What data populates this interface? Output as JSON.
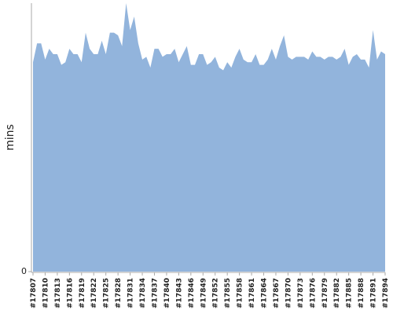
{
  "chart_data": {
    "type": "area",
    "y_label": "mins",
    "color": "#92b4dc",
    "categories": [
      "#17807",
      null,
      null,
      "#17810",
      null,
      null,
      "#17813",
      null,
      null,
      "#17816",
      null,
      null,
      "#17819",
      null,
      null,
      "#17822",
      null,
      null,
      "#17825",
      null,
      null,
      "#17828",
      null,
      null,
      "#17831",
      null,
      null,
      "#17834",
      null,
      null,
      "#17837",
      null,
      null,
      "#17840",
      null,
      null,
      "#17843",
      null,
      null,
      "#17846",
      null,
      null,
      "#17849",
      null,
      null,
      "#17852",
      null,
      null,
      "#17855",
      null,
      null,
      "#17858",
      null,
      null,
      "#17861",
      null,
      null,
      "#17864",
      null,
      null,
      "#17867",
      null,
      null,
      "#17870",
      null,
      null,
      "#17873",
      null,
      null,
      "#17876",
      null,
      null,
      "#17879",
      null,
      null,
      "#17882",
      null,
      null,
      "#17885",
      null,
      null,
      "#17888",
      null,
      null,
      "#17891",
      null,
      null,
      "#17894"
    ],
    "values": [
      78,
      85,
      85,
      79,
      83,
      81,
      81,
      77,
      78,
      83,
      81,
      81,
      78,
      89,
      83,
      81,
      81,
      86,
      81,
      89,
      89,
      88,
      84,
      100,
      90,
      95,
      85,
      79,
      80,
      76,
      83,
      83,
      80,
      81,
      81,
      83,
      78,
      81,
      84,
      77,
      77,
      81,
      81,
      77,
      78,
      80,
      76,
      75,
      78,
      76,
      80,
      83,
      79,
      78,
      78,
      81,
      77,
      77,
      79,
      83,
      79,
      84,
      88,
      80,
      79,
      80,
      80,
      80,
      79,
      82,
      80,
      80,
      79,
      80,
      80,
      79,
      80,
      83,
      77,
      80,
      81,
      79,
      79,
      76,
      90,
      79,
      82,
      81
    ],
    "ylim": [
      0,
      100
    ],
    "yticks": [
      0
    ]
  }
}
